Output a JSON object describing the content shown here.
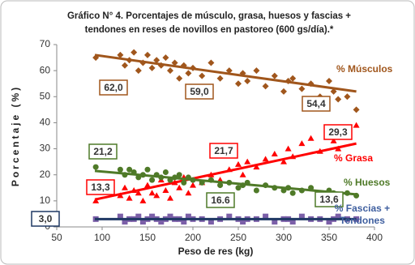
{
  "chart_data": {
    "type": "scatter",
    "title": "Gráfico N° 4. Porcentajes de músculo, grasa, huesos y fascias + tendones en reses de novillos en pastoreo (600 gs/día).*",
    "x_label": "Peso de res (kg)",
    "y_label": "Porcentaje (%)",
    "xlim": [
      50,
      400
    ],
    "xticks": [
      50,
      100,
      150,
      200,
      250,
      300,
      350,
      400
    ],
    "ylim": [
      0,
      70
    ],
    "yticks": [
      0,
      10,
      20,
      30,
      40,
      50,
      60,
      70
    ],
    "x": [
      93,
      120,
      125,
      130,
      135,
      140,
      145,
      150,
      155,
      160,
      165,
      170,
      175,
      180,
      185,
      190,
      195,
      200,
      210,
      220,
      230,
      240,
      250,
      255,
      260,
      270,
      280,
      290,
      300,
      305,
      310,
      320,
      330,
      340,
      350,
      355,
      360,
      370,
      380
    ],
    "series": [
      {
        "name": "% Músculos",
        "color": "#a0561c",
        "marker": "diamond",
        "values": [
          65,
          66,
          62,
          64,
          67,
          60,
          63,
          66,
          61,
          64,
          62,
          65,
          60,
          63,
          57,
          62,
          59,
          61,
          58,
          63,
          57,
          60,
          55,
          59,
          56,
          60,
          54,
          58,
          52,
          56,
          57,
          53,
          55,
          50,
          56,
          52,
          49,
          50,
          45
        ],
        "trend": {
          "x": [
            92,
            380
          ],
          "y": [
            66,
            52
          ]
        },
        "annotations": [
          {
            "value": 62.0,
            "label": "62,0"
          },
          {
            "value": 59.0,
            "label": "59,0"
          },
          {
            "value": 54.4,
            "label": "54,4"
          }
        ]
      },
      {
        "name": "% Grasa",
        "color": "#ff0000",
        "marker": "triangle",
        "values": [
          10,
          12,
          15,
          11,
          14,
          13,
          10,
          16,
          13,
          12,
          18,
          14,
          11,
          17,
          15,
          19,
          13,
          16,
          17,
          20,
          18,
          22,
          24,
          20,
          25,
          23,
          26,
          28,
          25,
          30,
          27,
          32,
          34,
          29,
          36,
          33,
          30,
          35,
          39
        ],
        "trend": {
          "x": [
            92,
            380
          ],
          "y": [
            10.5,
            32
          ]
        },
        "annotations": [
          {
            "value": 13.3,
            "label": "13,3"
          },
          {
            "value": 21.7,
            "label": "21,7"
          },
          {
            "value": 29.3,
            "label": "29,3"
          }
        ]
      },
      {
        "name": "% Huesos",
        "color": "#4f7a28",
        "marker": "circle",
        "values": [
          23,
          22,
          20,
          22,
          21,
          19,
          20,
          22,
          18,
          20,
          19,
          21,
          18,
          19,
          20,
          17,
          19,
          18,
          17,
          18,
          16,
          17,
          15,
          16,
          17,
          14,
          16,
          15,
          14,
          15,
          13,
          14,
          15,
          13,
          14,
          13,
          12,
          13,
          12
        ],
        "trend": {
          "x": [
            92,
            380
          ],
          "y": [
            21.5,
            12.5
          ]
        },
        "annotations": [
          {
            "value": 21.2,
            "label": "21,2"
          },
          {
            "value": 16.6,
            "label": "16.6"
          },
          {
            "value": 13.6,
            "label": "13,6"
          }
        ]
      },
      {
        "name": "% Fascias + Tendones",
        "color": "#7b5fa8",
        "trend_color": "#1f3864",
        "label_color": "#3f5f9f",
        "marker": "square",
        "values": [
          3,
          4,
          2,
          3,
          3,
          4,
          2,
          3,
          4,
          3,
          2,
          3,
          4,
          3,
          3,
          2,
          4,
          3,
          3,
          2,
          3,
          4,
          3,
          2,
          3,
          3,
          4,
          2,
          3,
          3,
          2,
          4,
          3,
          3,
          2,
          3,
          4,
          3,
          3
        ],
        "trend": {
          "x": [
            92,
            380
          ],
          "y": [
            3,
            3
          ]
        },
        "annotations": [
          {
            "value": 3.0,
            "label": "3,0"
          }
        ]
      }
    ]
  }
}
